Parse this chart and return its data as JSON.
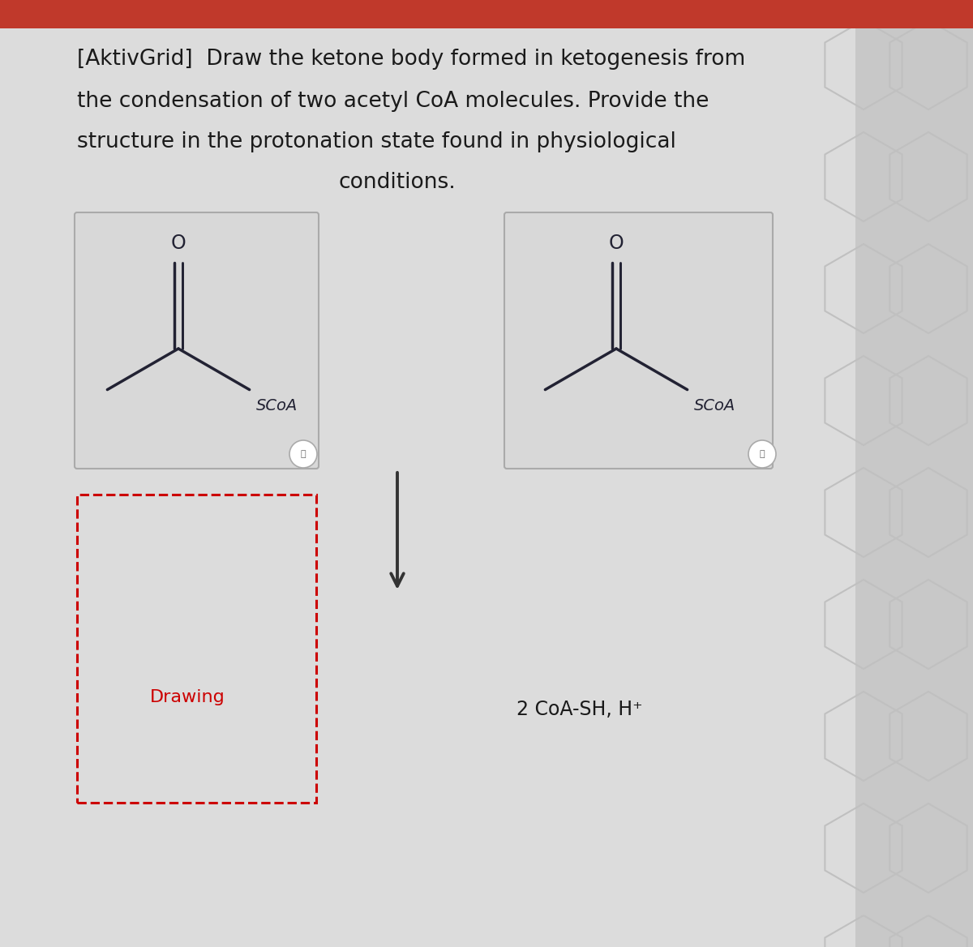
{
  "title_line1": "[AktivGrid]  Draw the ketone body formed in ketogenesis from",
  "title_line2": "the condensation of two acetyl CoA molecules. Provide the",
  "title_line3": "structure in the protonation state found in physiological",
  "title_line4": "conditions.",
  "bg_color": "#dcdcdc",
  "red_bar_color": "#c0392b",
  "molecule_line_color": "#222233",
  "drawing_box_color": "#cc0000",
  "drawing_text": "Drawing",
  "drawing_text_color": "#cc0000",
  "scoa_label": "SCoA",
  "o_label": "O",
  "byproduct_label": "2 CoA-SH, H⁺",
  "arrow_color": "#333333",
  "title_fontsize": 19,
  "text_color": "#1a1a1a",
  "hex_bg_color": "#c8c8c8",
  "mol_box_bg": "#d8d8d8",
  "mol_box_edge": "#aaaaaa"
}
